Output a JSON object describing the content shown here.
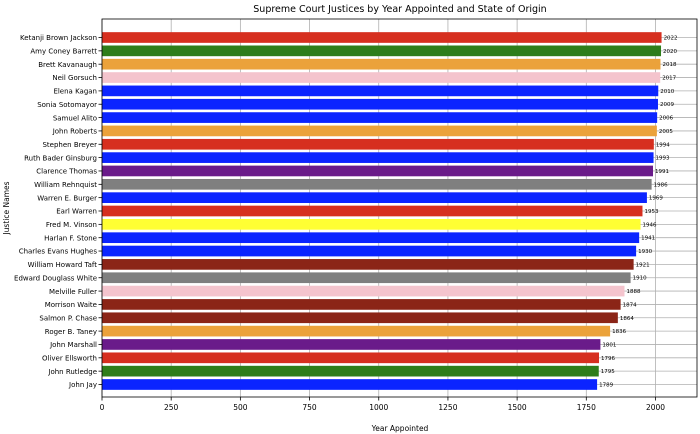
{
  "chart_data": {
    "type": "bar",
    "orientation": "horizontal",
    "title": "Supreme Court Justices by Year Appointed and State of Origin",
    "xlabel": "Year Appointed",
    "ylabel": "Justice Names",
    "xlim": [
      0,
      2150
    ],
    "xticks": [
      0,
      250,
      500,
      750,
      1000,
      1250,
      1500,
      1750,
      2000
    ],
    "grid": true,
    "bars": [
      {
        "name": "Ketanji Brown Jackson",
        "value": 2022,
        "color": "#d62f1f"
      },
      {
        "name": "Amy Coney Barrett",
        "value": 2020,
        "color": "#2e7d1a"
      },
      {
        "name": "Brett Kavanaugh",
        "value": 2018,
        "color": "#eba23b"
      },
      {
        "name": "Neil Gorsuch",
        "value": 2017,
        "color": "#f4c4cd"
      },
      {
        "name": "Elena Kagan",
        "value": 2010,
        "color": "#0b24ff"
      },
      {
        "name": "Sonia Sotomayor",
        "value": 2009,
        "color": "#0b24ff"
      },
      {
        "name": "Samuel Alito",
        "value": 2006,
        "color": "#0b24ff"
      },
      {
        "name": "John Roberts",
        "value": 2005,
        "color": "#eba23b"
      },
      {
        "name": "Stephen Breyer",
        "value": 1994,
        "color": "#d62f1f"
      },
      {
        "name": "Ruth Bader Ginsburg",
        "value": 1993,
        "color": "#0b24ff"
      },
      {
        "name": "Clarence Thomas",
        "value": 1991,
        "color": "#6a1b8a"
      },
      {
        "name": "William Rehnquist",
        "value": 1986,
        "color": "#7f7f7f"
      },
      {
        "name": "Warren E. Burger",
        "value": 1969,
        "color": "#0b24ff"
      },
      {
        "name": "Earl Warren",
        "value": 1953,
        "color": "#d62f1f"
      },
      {
        "name": "Fred M. Vinson",
        "value": 1946,
        "color": "#ffff33"
      },
      {
        "name": "Harlan F. Stone",
        "value": 1941,
        "color": "#0b24ff"
      },
      {
        "name": "Charles Evans Hughes",
        "value": 1930,
        "color": "#0b24ff"
      },
      {
        "name": "William Howard Taft",
        "value": 1921,
        "color": "#8b2517"
      },
      {
        "name": "Edward Douglass White",
        "value": 1910,
        "color": "#7f7f7f"
      },
      {
        "name": "Melville Fuller",
        "value": 1888,
        "color": "#f4c4cd"
      },
      {
        "name": "Morrison Waite",
        "value": 1874,
        "color": "#8b2517"
      },
      {
        "name": "Salmon P. Chase",
        "value": 1864,
        "color": "#8b2517"
      },
      {
        "name": "Roger B. Taney",
        "value": 1836,
        "color": "#eba23b"
      },
      {
        "name": "John Marshall",
        "value": 1801,
        "color": "#6a1b8a"
      },
      {
        "name": "Oliver Ellsworth",
        "value": 1796,
        "color": "#d62f1f"
      },
      {
        "name": "John Rutledge",
        "value": 1795,
        "color": "#2e7d1a"
      },
      {
        "name": "John Jay",
        "value": 1789,
        "color": "#0b24ff"
      }
    ]
  }
}
